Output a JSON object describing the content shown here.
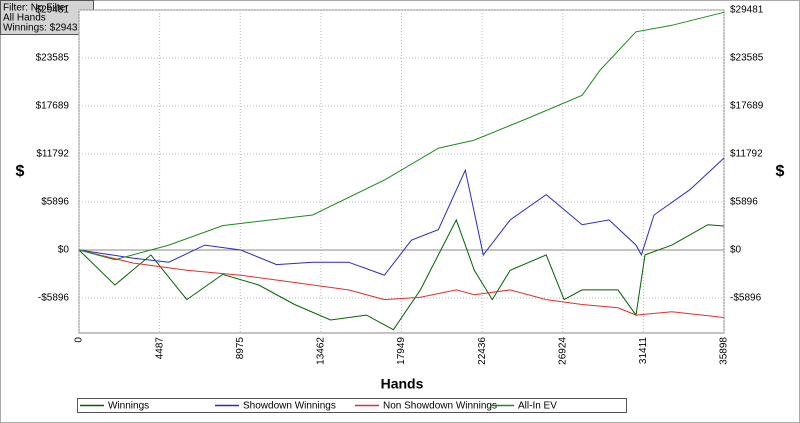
{
  "info": {
    "filter": "Filter: No Filter",
    "hands": "All Hands",
    "winnings": "Winnings: $2943.05"
  },
  "chart_data": {
    "type": "line",
    "x_label": "Hands",
    "y_label": "$",
    "y2_label": "$",
    "grid": true,
    "xlim": [
      0,
      35898
    ],
    "xticks": [
      0,
      4487,
      8975,
      13462,
      17949,
      22436,
      26924,
      31411,
      35898
    ],
    "ylim": [
      -10200,
      29481
    ],
    "yticks": [
      {
        "value": -5896,
        "label": "-$5896"
      },
      {
        "value": 0,
        "label": "$0"
      },
      {
        "value": 5896,
        "label": "$5896"
      },
      {
        "value": 11792,
        "label": "$11792"
      },
      {
        "value": 17689,
        "label": "$17689"
      },
      {
        "value": 23585,
        "label": "$23585"
      },
      {
        "value": 29481,
        "label": "$29481"
      }
    ],
    "series": [
      {
        "name": "Winnings",
        "color": "#006400",
        "x": [
          0,
          2000,
          4000,
          6000,
          8000,
          10000,
          12000,
          14000,
          16000,
          17500,
          19000,
          21000,
          22000,
          23000,
          24000,
          26000,
          27000,
          28000,
          30000,
          31000,
          31500,
          33000,
          35000,
          35898
        ],
        "values": [
          0,
          -4300,
          -600,
          -6100,
          -3000,
          -4300,
          -6700,
          -8600,
          -8000,
          -9800,
          -4900,
          3700,
          -2500,
          -6100,
          -2500,
          -600,
          -6100,
          -4900,
          -4900,
          -8000,
          -600,
          600,
          3100,
          2943
        ]
      },
      {
        "name": "Showdown Winnings",
        "color": "#2a2ac8",
        "x": [
          0,
          3000,
          5000,
          7000,
          9000,
          11000,
          13000,
          15000,
          17000,
          18500,
          20000,
          21500,
          22500,
          24000,
          26000,
          28000,
          29500,
          31000,
          31300,
          32000,
          34000,
          35898
        ],
        "values": [
          0,
          -1000,
          -1500,
          600,
          0,
          -1800,
          -1500,
          -1500,
          -3100,
          1200,
          2500,
          9800,
          -600,
          3700,
          6800,
          3100,
          3700,
          600,
          -600,
          4300,
          7400,
          11300
        ]
      },
      {
        "name": "Non Showdown Winnings",
        "color": "#e03030",
        "x": [
          0,
          3000,
          6000,
          9000,
          12000,
          15000,
          17000,
          19000,
          21000,
          22000,
          24000,
          26000,
          28000,
          30000,
          31000,
          33000,
          35898
        ],
        "values": [
          0,
          -1600,
          -2500,
          -3100,
          -4000,
          -4900,
          -6100,
          -5800,
          -4900,
          -5500,
          -4900,
          -6100,
          -6700,
          -7100,
          -8000,
          -7600,
          -8300
        ]
      },
      {
        "name": "All-In EV",
        "color": "#1f8a1f",
        "x": [
          0,
          2000,
          5000,
          8000,
          13000,
          17000,
          20000,
          22000,
          25000,
          28000,
          29000,
          31000,
          33000,
          35898
        ],
        "values": [
          0,
          -1200,
          600,
          3000,
          4300,
          8600,
          12500,
          13500,
          16200,
          19000,
          22100,
          26800,
          27600,
          29200
        ]
      }
    ]
  }
}
